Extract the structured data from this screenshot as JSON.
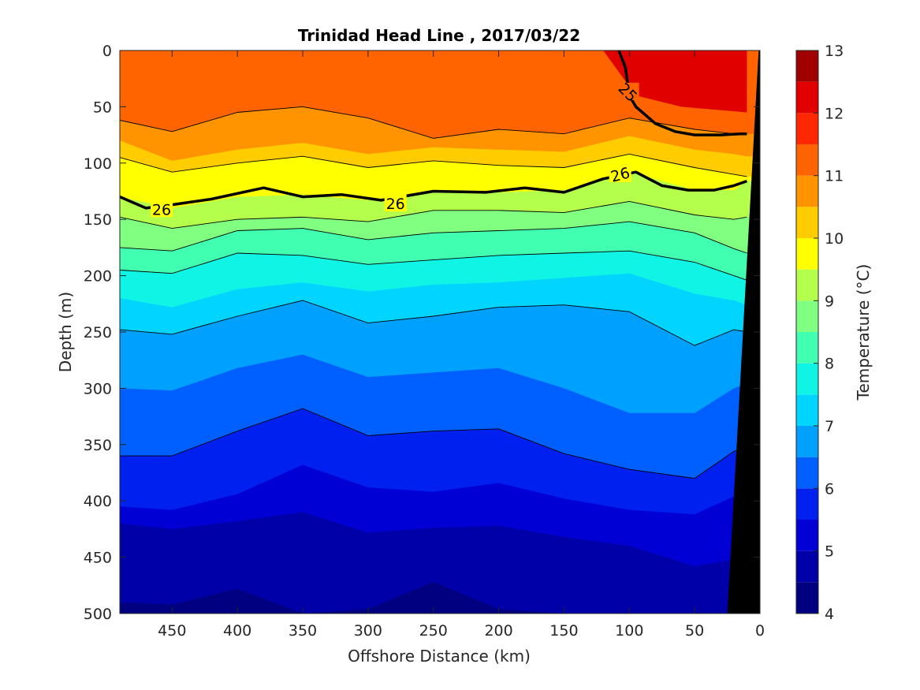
{
  "chart_data": {
    "type": "heatmap",
    "title": "Trinidad Head Line , 2017/03/22",
    "xlabel": "Offshore Distance (km)",
    "ylabel": "Depth (m)",
    "colorbar_label": "Temperature (°C)",
    "xlim": [
      490,
      0
    ],
    "ylim": [
      0,
      500
    ],
    "x_direction": "reversed",
    "y_direction": "reversed (depth increases downward)",
    "xticks": [
      450,
      400,
      350,
      300,
      250,
      200,
      150,
      100,
      50,
      0
    ],
    "yticks": [
      0,
      50,
      100,
      150,
      200,
      250,
      300,
      350,
      400,
      450,
      500
    ],
    "colorbar_range": [
      4,
      13
    ],
    "colorbar_ticks": [
      4,
      5,
      6,
      7,
      8,
      9,
      10,
      11,
      12,
      13
    ],
    "colorbar_levels": [
      {
        "from": 4.0,
        "to": 4.5,
        "color": "#000080"
      },
      {
        "from": 4.5,
        "to": 5.0,
        "color": "#0000a8"
      },
      {
        "from": 5.0,
        "to": 5.5,
        "color": "#0000d4"
      },
      {
        "from": 5.5,
        "to": 6.0,
        "color": "#0020f0"
      },
      {
        "from": 6.0,
        "to": 6.5,
        "color": "#0060ff"
      },
      {
        "from": 6.5,
        "to": 7.0,
        "color": "#00a0ff"
      },
      {
        "from": 7.0,
        "to": 7.5,
        "color": "#00d4ff"
      },
      {
        "from": 7.5,
        "to": 8.0,
        "color": "#10f4e6"
      },
      {
        "from": 8.0,
        "to": 8.5,
        "color": "#40ffb0"
      },
      {
        "from": 8.5,
        "to": 9.0,
        "color": "#80ff80"
      },
      {
        "from": 9.0,
        "to": 9.5,
        "color": "#b4ff4c"
      },
      {
        "from": 9.5,
        "to": 10.0,
        "color": "#ffff00"
      },
      {
        "from": 10.0,
        "to": 10.5,
        "color": "#ffcc00"
      },
      {
        "from": 10.5,
        "to": 11.0,
        "color": "#ff9400"
      },
      {
        "from": 11.0,
        "to": 11.5,
        "color": "#ff6400"
      },
      {
        "from": 11.5,
        "to": 12.0,
        "color": "#ff2800"
      },
      {
        "from": 12.0,
        "to": 12.5,
        "color": "#e00000"
      },
      {
        "from": 12.5,
        "to": 13.0,
        "color": "#a00000"
      }
    ],
    "isotherm_depth_profiles": {
      "x_km": [
        490,
        450,
        400,
        350,
        300,
        250,
        200,
        150,
        100,
        50,
        20,
        10
      ],
      "levels": [
        {
          "temp": 11.0,
          "depth": [
            62,
            72,
            55,
            50,
            60,
            78,
            70,
            74,
            60,
            70,
            74,
            74
          ]
        },
        {
          "temp": 10.5,
          "depth": [
            80,
            98,
            88,
            82,
            92,
            86,
            88,
            90,
            76,
            88,
            92,
            94
          ]
        },
        {
          "temp": 10.0,
          "depth": [
            95,
            108,
            100,
            94,
            104,
            98,
            102,
            104,
            92,
            104,
            110,
            112
          ]
        },
        {
          "temp": 9.5,
          "depth": [
            130,
            140,
            130,
            128,
            133,
            125,
            126,
            124,
            108,
            124,
            124,
            116
          ]
        },
        {
          "temp": 9.0,
          "depth": [
            148,
            158,
            150,
            148,
            152,
            142,
            142,
            144,
            134,
            146,
            150,
            148
          ]
        },
        {
          "temp": 8.5,
          "depth": [
            175,
            178,
            160,
            158,
            168,
            162,
            160,
            158,
            152,
            162,
            176,
            180
          ]
        },
        {
          "temp": 8.0,
          "depth": [
            195,
            198,
            180,
            182,
            190,
            186,
            182,
            180,
            178,
            188,
            200,
            204
          ]
        },
        {
          "temp": 7.5,
          "depth": [
            220,
            228,
            212,
            206,
            214,
            208,
            206,
            202,
            198,
            216,
            222,
            226
          ]
        },
        {
          "temp": 7.0,
          "depth": [
            248,
            252,
            236,
            222,
            242,
            236,
            228,
            226,
            232,
            262,
            248,
            250
          ]
        },
        {
          "temp": 6.5,
          "depth": [
            300,
            302,
            282,
            270,
            290,
            286,
            282,
            300,
            322,
            322,
            300,
            296
          ]
        },
        {
          "temp": 6.0,
          "depth": [
            360,
            360,
            338,
            318,
            342,
            338,
            336,
            358,
            372,
            380,
            356,
            352
          ]
        },
        {
          "temp": 5.5,
          "depth": [
            405,
            408,
            394,
            368,
            388,
            392,
            384,
            398,
            408,
            412,
            396,
            392
          ]
        },
        {
          "temp": 5.0,
          "depth": [
            420,
            425,
            418,
            410,
            428,
            424,
            422,
            432,
            440,
            458,
            452,
            448
          ]
        },
        {
          "temp": 4.5,
          "depth": [
            490,
            492,
            478,
            500,
            496,
            472,
            496,
            500,
            500,
            500,
            500,
            500
          ]
        }
      ]
    },
    "warm_patch": {
      "temp": 12.0,
      "x_km": [
        120,
        10
      ],
      "depth": [
        0,
        55
      ]
    },
    "labeled_contours": [
      {
        "label": "25",
        "x_km": [
          108,
          103,
          100,
          95,
          90,
          80,
          65,
          50,
          30,
          15,
          10
        ],
        "depth": [
          0,
          15,
          40,
          50,
          55,
          65,
          72,
          75,
          75,
          74,
          74
        ]
      },
      {
        "label": "26",
        "x_km": [
          490,
          470,
          450,
          420,
          380,
          350,
          320,
          290,
          250,
          210,
          180,
          150,
          120,
          95,
          75,
          55,
          35,
          20,
          10
        ],
        "depth": [
          130,
          140,
          137,
          132,
          122,
          130,
          128,
          133,
          125,
          126,
          122,
          126,
          114,
          108,
          120,
          124,
          124,
          120,
          116
        ]
      }
    ],
    "contour_labels": [
      {
        "text": "26",
        "x_km": 458,
        "depth": 141
      },
      {
        "text": "26",
        "x_km": 279,
        "depth": 136
      },
      {
        "text": "26",
        "x_km": 107,
        "depth": 110
      },
      {
        "text": "25",
        "x_km": 101,
        "depth": 37
      }
    ],
    "seafloor_mask_x_km": [
      {
        "depth": 0,
        "x_km": 1
      },
      {
        "depth": 500,
        "x_km": 25
      }
    ]
  }
}
